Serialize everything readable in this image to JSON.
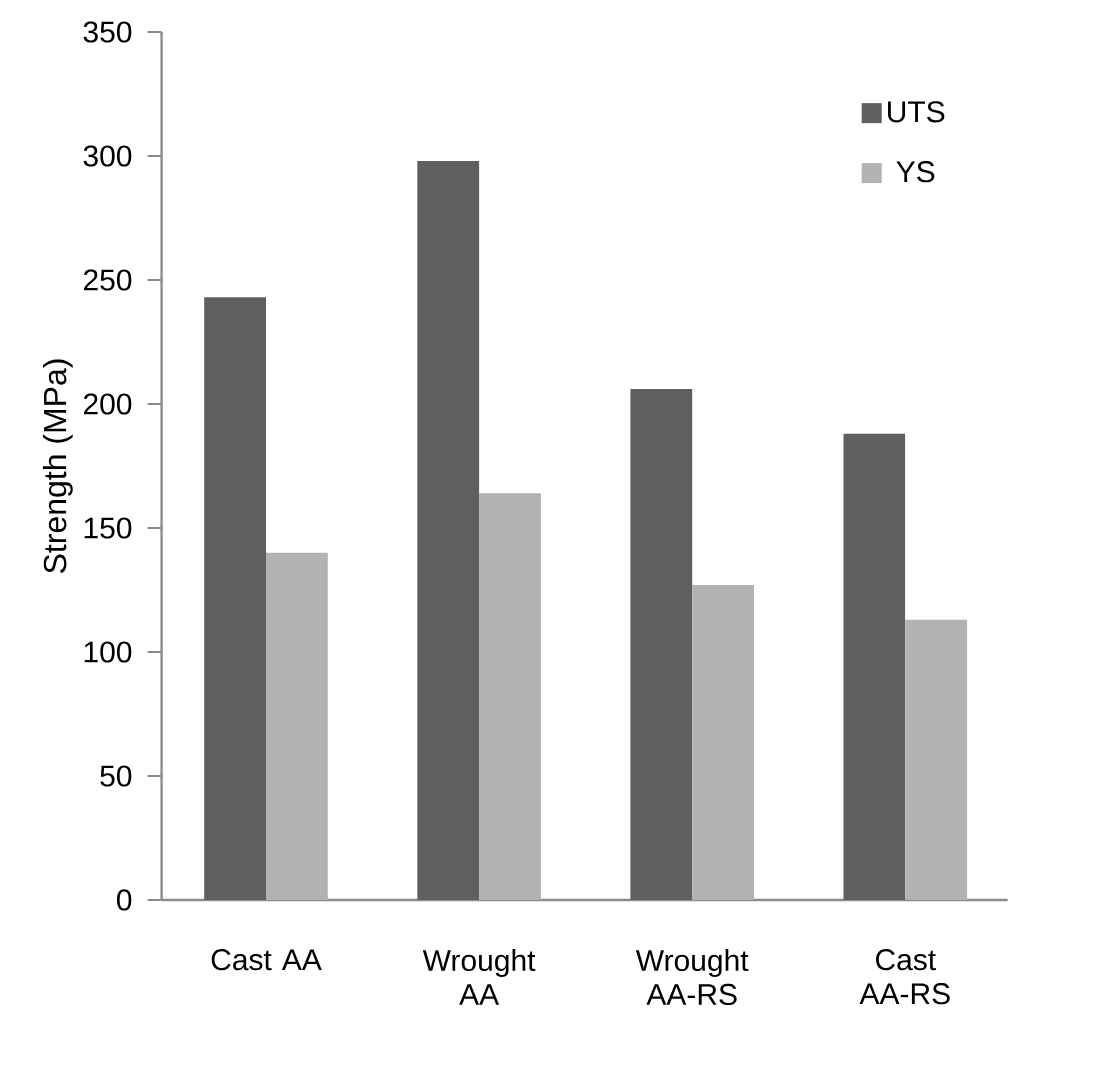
{
  "chart_data": {
    "type": "bar",
    "ylabel": "Strength (MPa)",
    "categories": [
      "Cast AA",
      "Wrought AA",
      "Wrought AA-RS",
      "Cast AA-RS"
    ],
    "series": [
      {
        "name": "UTS",
        "color": "#5f5f5f",
        "values": [
          243,
          298,
          206,
          188
        ]
      },
      {
        "name": "YS",
        "color": "#b2b2b2",
        "values": [
          140,
          164,
          127,
          113
        ]
      }
    ],
    "ylim": [
      0,
      350
    ],
    "yticks": [
      0,
      50,
      100,
      150,
      200,
      250,
      300,
      350
    ],
    "grid": false,
    "legend": "top right"
  }
}
